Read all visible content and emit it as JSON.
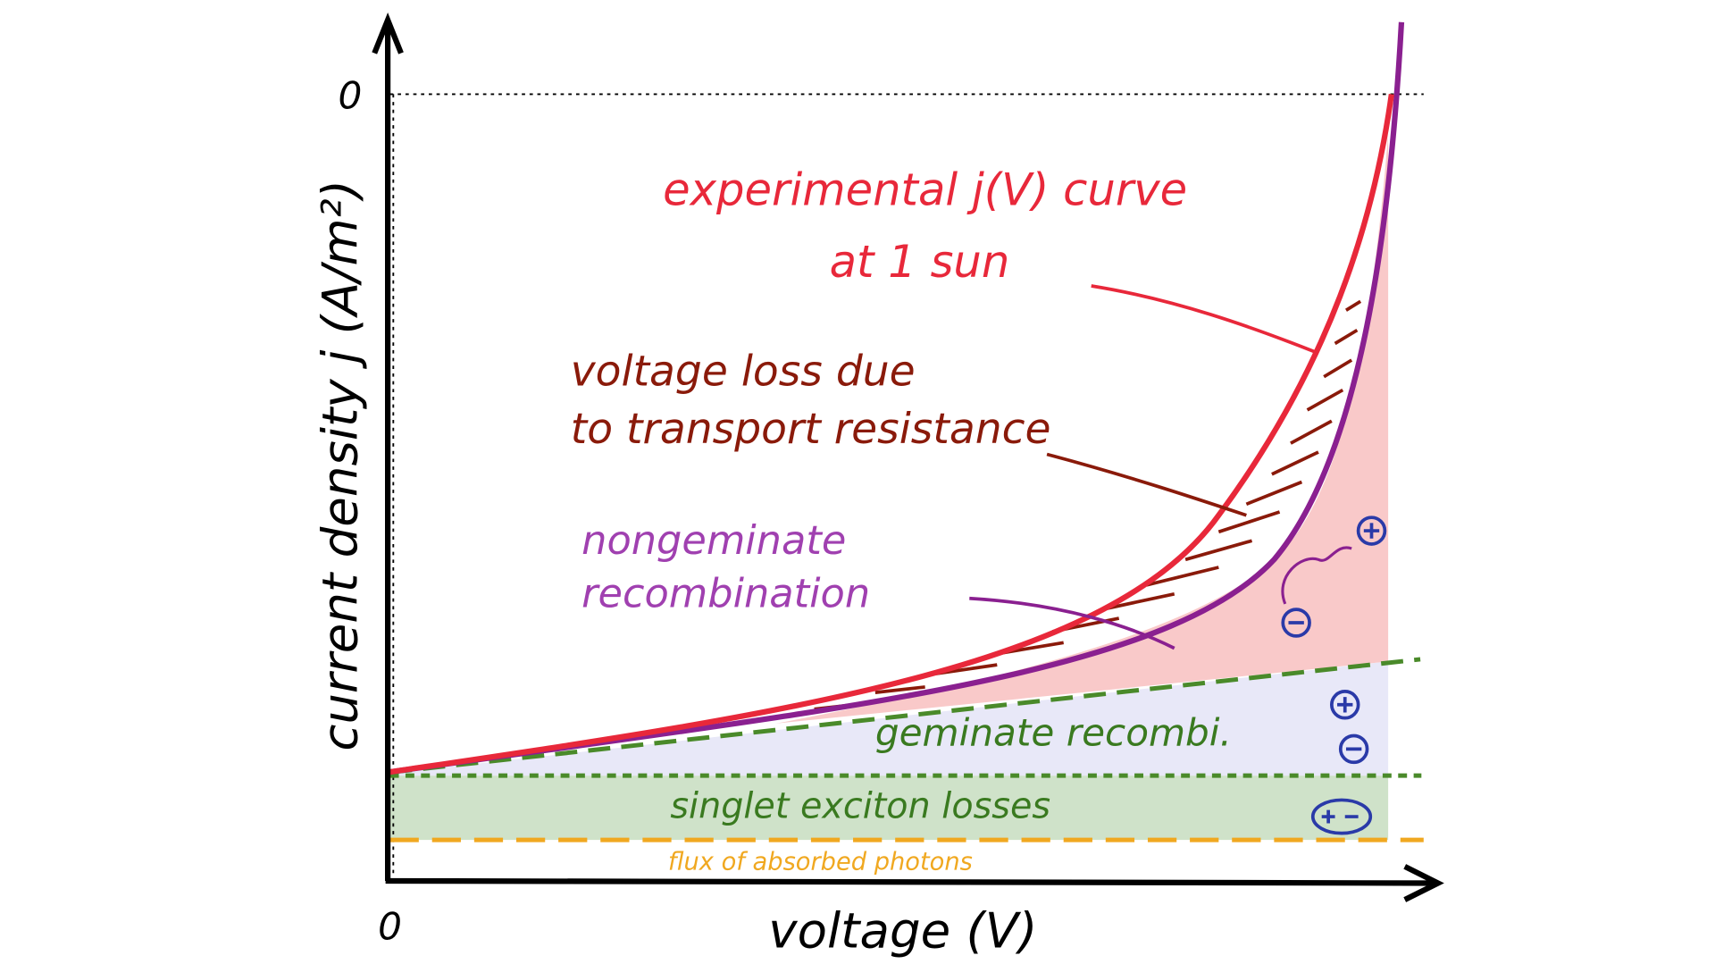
{
  "axes": {
    "y_origin": "0",
    "x_origin": "0",
    "y_label": "current density j (A/m²)",
    "x_label": "voltage (V)"
  },
  "annotations": {
    "experimental_line1": "experimental j(V) curve",
    "experimental_line2": "at 1 sun",
    "transport_line1": "voltage loss due",
    "transport_line2": "to transport resistance",
    "nongeminate_line1": "nongeminate",
    "nongeminate_line2": "recombination",
    "geminate": "geminate recombi.",
    "singlet": "singlet exciton losses",
    "flux": "flux of absorbed photons"
  }
}
